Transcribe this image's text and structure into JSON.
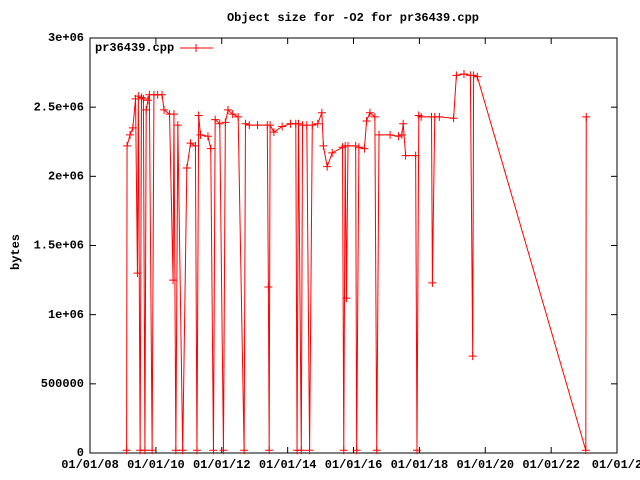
{
  "chart_data": {
    "type": "line",
    "title": "Object size for -O2 for pr36439.cpp",
    "y_label": "bytes",
    "legend": "top-left",
    "xlim": [
      "2008-01-01",
      "2024-01-01"
    ],
    "xticks": [
      {
        "value": "2008-01-01",
        "label": "01/01/08"
      },
      {
        "value": "2010-01-01",
        "label": "01/01/10"
      },
      {
        "value": "2012-01-01",
        "label": "01/01/12"
      },
      {
        "value": "2014-01-01",
        "label": "01/01/14"
      },
      {
        "value": "2016-01-01",
        "label": "01/01/16"
      },
      {
        "value": "2018-01-01",
        "label": "01/01/18"
      },
      {
        "value": "2020-01-01",
        "label": "01/01/20"
      },
      {
        "value": "2022-01-01",
        "label": "01/01/22"
      },
      {
        "value": "2024-01-01",
        "label": "01/01/2"
      }
    ],
    "ylim": [
      0,
      3000000
    ],
    "yticks": [
      0,
      500000,
      {
        "value": 1000000,
        "label": "1e+06"
      },
      {
        "value": 1500000,
        "label": "1.5e+06"
      },
      {
        "value": 2000000,
        "label": "2e+06"
      },
      {
        "value": 2500000,
        "label": "2.5e+06"
      },
      {
        "value": 3000000,
        "label": "3e+06"
      }
    ],
    "x": [
      "2009-02-10",
      "2009-02-15",
      "2009-03-20",
      "2009-04-20",
      "2009-05-20",
      "2009-06-10",
      "2009-06-20",
      "2009-07-10",
      "2009-07-25",
      "2009-08-15",
      "2009-09-01",
      "2009-09-15",
      "2009-10-05",
      "2009-10-20",
      "2009-11-20",
      "2009-12-10",
      "2010-01-20",
      "2010-03-10",
      "2010-04-01",
      "2010-06-01",
      "2010-07-10",
      "2010-07-20",
      "2010-08-10",
      "2010-09-01",
      "2010-10-25",
      "2010-12-10",
      "2011-01-20",
      "2011-03-15",
      "2011-04-01",
      "2011-04-20",
      "2011-05-10",
      "2011-08-01",
      "2011-09-01",
      "2011-10-01",
      "2011-10-20",
      "2011-12-10",
      "2012-01-20",
      "2012-02-10",
      "2012-03-10",
      "2012-05-01",
      "2012-07-01",
      "2012-09-05",
      "2012-09-20",
      "2012-11-01",
      "2013-02-01",
      "2013-05-20",
      "2013-06-01",
      "2013-06-10",
      "2013-06-20",
      "2013-08-01",
      "2013-11-01",
      "2014-02-01",
      "2014-04-01",
      "2014-04-15",
      "2014-05-01",
      "2014-06-01",
      "2014-06-15",
      "2014-08-01",
      "2014-09-01",
      "2014-10-01",
      "2014-12-01",
      "2015-01-15",
      "2015-02-01",
      "2015-03-15",
      "2015-05-10",
      "2015-09-01",
      "2015-09-15",
      "2015-10-01",
      "2015-10-15",
      "2015-11-01",
      "2016-01-25",
      "2016-02-05",
      "2016-03-01",
      "2016-05-01",
      "2016-05-25",
      "2016-07-01",
      "2016-08-25",
      "2016-09-15",
      "2016-10-10",
      "2017-02-10",
      "2017-05-15",
      "2017-06-20",
      "2017-07-05",
      "2017-08-01",
      "2017-11-20",
      "2017-12-05",
      "2017-12-25",
      "2018-01-20",
      "2018-05-15",
      "2018-05-25",
      "2018-06-20",
      "2018-08-10",
      "2019-01-15",
      "2019-02-15",
      "2019-05-10",
      "2019-07-20",
      "2019-08-15",
      "2019-08-25",
      "2019-10-05",
      "2023-01-20",
      "2023-01-25"
    ],
    "series": [
      {
        "name": "pr36439.cpp",
        "color": "#ff0000",
        "values": [
          20000,
          2220000,
          2300000,
          2350000,
          2560000,
          1300000,
          2580000,
          20000,
          2570000,
          2560000,
          20000,
          2480000,
          2550000,
          2590000,
          20000,
          2590000,
          2590000,
          2590000,
          2480000,
          2450000,
          1250000,
          2450000,
          20000,
          2370000,
          20000,
          2060000,
          2240000,
          2220000,
          20000,
          2440000,
          2300000,
          2290000,
          2200000,
          20000,
          2410000,
          2380000,
          20000,
          2390000,
          2480000,
          2450000,
          2430000,
          20000,
          2380000,
          2370000,
          2370000,
          2370000,
          1200000,
          20000,
          2370000,
          2320000,
          2360000,
          2380000,
          2380000,
          20000,
          2380000,
          20000,
          2370000,
          2370000,
          20000,
          2370000,
          2380000,
          2460000,
          2220000,
          2070000,
          2170000,
          2210000,
          20000,
          2220000,
          1120000,
          2220000,
          2220000,
          20000,
          2210000,
          2200000,
          2400000,
          2460000,
          2430000,
          20000,
          2300000,
          2300000,
          2290000,
          2300000,
          2380000,
          2150000,
          2150000,
          20000,
          2440000,
          2430000,
          2430000,
          1230000,
          2430000,
          2430000,
          2420000,
          2730000,
          2740000,
          2730000,
          700000,
          2730000,
          2720000,
          20000,
          2430000
        ]
      }
    ]
  }
}
